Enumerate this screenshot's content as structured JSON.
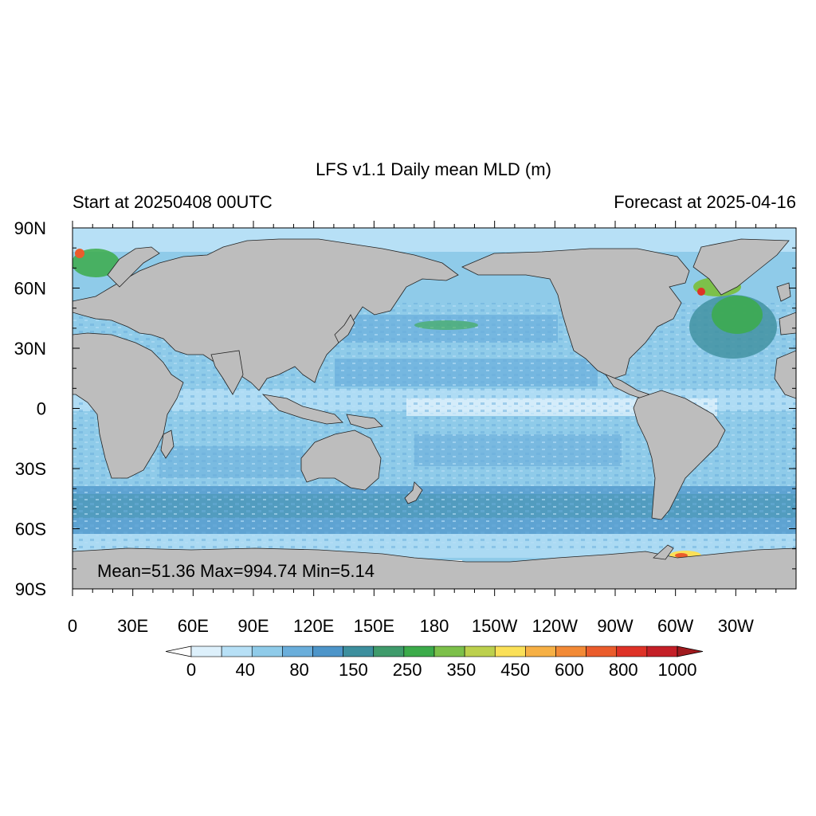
{
  "title": "LFS v1.1 Daily mean MLD (m)",
  "subtitle_left": "Start at 20250408 00UTC",
  "subtitle_right": "Forecast at 2025-04-16",
  "stats_text": "Mean=51.36  Max=994.74  Min=5.14",
  "map": {
    "projection": "cylindrical equidistant",
    "center_longitude": 180,
    "lat_range": [
      -90,
      90
    ],
    "lon_range": [
      0,
      360
    ],
    "lat_ticks": [
      {
        "value": 90,
        "label": "90N"
      },
      {
        "value": 60,
        "label": "60N"
      },
      {
        "value": 30,
        "label": "30N"
      },
      {
        "value": 0,
        "label": "0"
      },
      {
        "value": -30,
        "label": "30S"
      },
      {
        "value": -60,
        "label": "60S"
      },
      {
        "value": -90,
        "label": "90S"
      }
    ],
    "lon_ticks": [
      {
        "value": 0,
        "label": "0"
      },
      {
        "value": 30,
        "label": "30E"
      },
      {
        "value": 60,
        "label": "60E"
      },
      {
        "value": 90,
        "label": "90E"
      },
      {
        "value": 120,
        "label": "120E"
      },
      {
        "value": 150,
        "label": "150E"
      },
      {
        "value": 180,
        "label": "180"
      },
      {
        "value": 210,
        "label": "150W"
      },
      {
        "value": 240,
        "label": "120W"
      },
      {
        "value": 270,
        "label": "90W"
      },
      {
        "value": 300,
        "label": "60W"
      },
      {
        "value": 330,
        "label": "30W"
      }
    ],
    "land_color": "#bdbdbd",
    "coastline_color": "#222222",
    "ocean_base_color": "#8fcbe9"
  },
  "colorbar": {
    "colors": [
      "#ffffff",
      "#ddf0fb",
      "#b7e0f6",
      "#8fcbe9",
      "#6aaedb",
      "#4d95c9",
      "#3d8f9e",
      "#3f9b6b",
      "#3cab4a",
      "#7cc04a",
      "#bcd04d",
      "#fae058",
      "#f6b045",
      "#f28a36",
      "#ea5c2c",
      "#de3227",
      "#c41f27",
      "#a01a1e"
    ],
    "labels": [
      "0",
      "40",
      "80",
      "150",
      "250",
      "350",
      "450",
      "600",
      "800",
      "1000"
    ]
  }
}
